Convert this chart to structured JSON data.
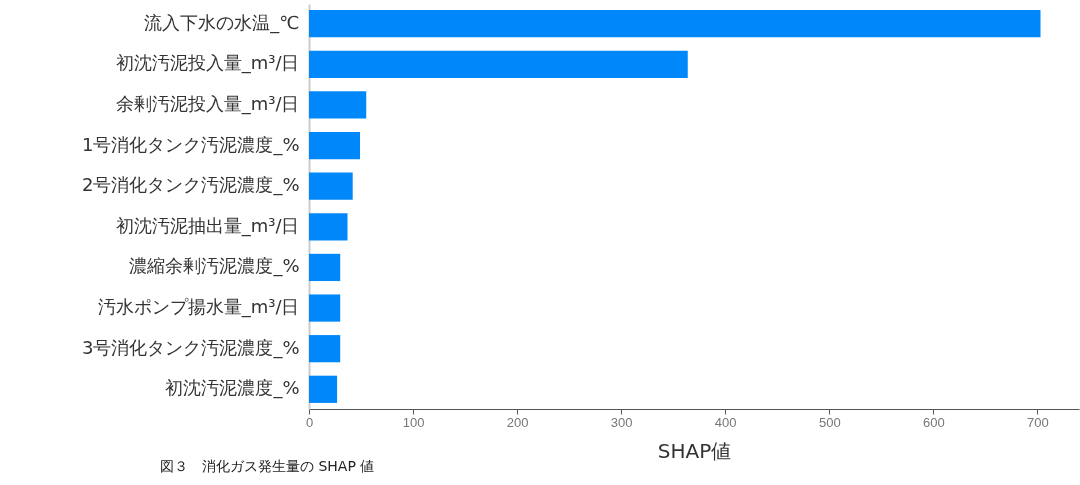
{
  "chart_data": {
    "type": "bar",
    "orientation": "horizontal",
    "categories": [
      "流入下水の水温_℃",
      "初沈汚泥投入量_m³/日",
      "余剰汚泥投入量_m³/日",
      "1号消化タンク汚泥濃度_%",
      "2号消化タンク汚泥濃度_%",
      "初沈汚泥抽出量_m³/日",
      "濃縮余剰汚泥濃度_%",
      "汚水ポンプ揚水量_m³/日",
      "3号消化タンク汚泥濃度_%",
      "初沈汚泥濃度_%"
    ],
    "values": [
      703,
      364,
      55,
      49,
      42,
      37,
      30,
      30,
      30,
      27
    ],
    "color": "#0088fb",
    "xlabel": "SHAP値",
    "xlim": [
      0,
      740
    ],
    "xticks": [
      0,
      100,
      200,
      300,
      400,
      500,
      600,
      700
    ],
    "grid": false,
    "annotations": [
      "図３　消化ガス発生量の SHAP 値"
    ]
  }
}
